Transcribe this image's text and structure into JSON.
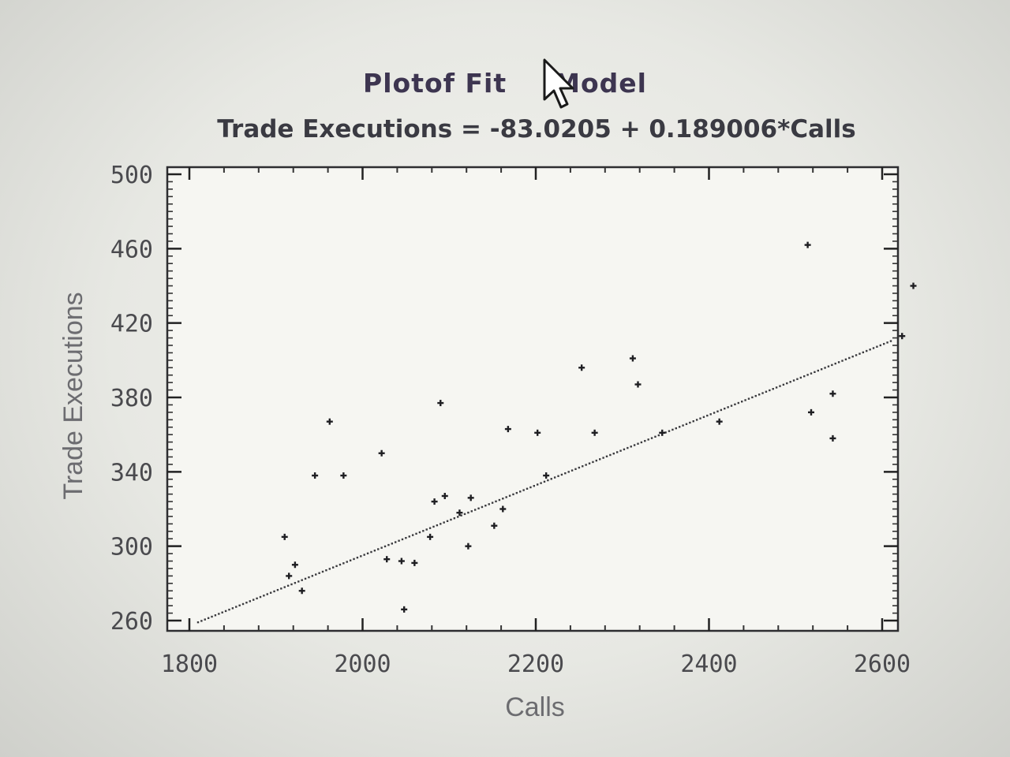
{
  "chart_data": {
    "type": "scatter",
    "title": "Plot of Fitted Model",
    "subtitle": "Trade Executions = -83.0205 + 0.189006*Calls",
    "xlabel": "Calls",
    "ylabel": "Trade Executions",
    "xlim": [
      1800,
      2600
    ],
    "ylim": [
      260,
      500
    ],
    "x_ticks": [
      1800,
      2000,
      2200,
      2400,
      2600
    ],
    "y_ticks": [
      260,
      300,
      340,
      380,
      420,
      460,
      500
    ],
    "grid": false,
    "fit": {
      "intercept": -83.0205,
      "slope": 0.189006,
      "x_range": [
        1810,
        2610
      ]
    },
    "points": [
      {
        "x": 1910,
        "y": 305
      },
      {
        "x": 1915,
        "y": 284
      },
      {
        "x": 1922,
        "y": 290
      },
      {
        "x": 1930,
        "y": 276
      },
      {
        "x": 1945,
        "y": 338
      },
      {
        "x": 1962,
        "y": 367
      },
      {
        "x": 1978,
        "y": 338
      },
      {
        "x": 2022,
        "y": 350
      },
      {
        "x": 2028,
        "y": 293
      },
      {
        "x": 2045,
        "y": 292
      },
      {
        "x": 2048,
        "y": 266
      },
      {
        "x": 2060,
        "y": 291
      },
      {
        "x": 2078,
        "y": 305
      },
      {
        "x": 2083,
        "y": 324
      },
      {
        "x": 2090,
        "y": 377
      },
      {
        "x": 2095,
        "y": 327
      },
      {
        "x": 2112,
        "y": 318
      },
      {
        "x": 2122,
        "y": 300
      },
      {
        "x": 2125,
        "y": 326
      },
      {
        "x": 2152,
        "y": 311
      },
      {
        "x": 2162,
        "y": 320
      },
      {
        "x": 2168,
        "y": 363
      },
      {
        "x": 2202,
        "y": 361
      },
      {
        "x": 2212,
        "y": 338
      },
      {
        "x": 2253,
        "y": 396
      },
      {
        "x": 2268,
        "y": 361
      },
      {
        "x": 2312,
        "y": 401
      },
      {
        "x": 2318,
        "y": 387
      },
      {
        "x": 2346,
        "y": 361
      },
      {
        "x": 2412,
        "y": 367
      },
      {
        "x": 2514,
        "y": 462
      },
      {
        "x": 2518,
        "y": 372
      },
      {
        "x": 2543,
        "y": 382
      },
      {
        "x": 2543,
        "y": 358
      },
      {
        "x": 2623,
        "y": 413
      },
      {
        "x": 2636,
        "y": 440
      }
    ]
  },
  "title_left": "Plotof Fit",
  "title_right": "Model"
}
